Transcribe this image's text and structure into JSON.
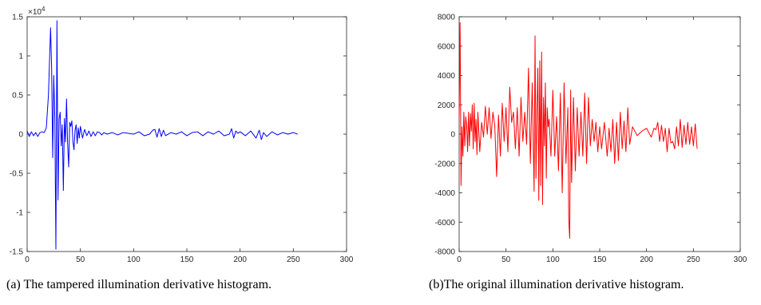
{
  "captions": {
    "a": "(a) The tampered illumination derivative histogram.",
    "b": "(b)The original illumination derivative histogram."
  },
  "chart_data": [
    {
      "type": "line",
      "title": "",
      "xlabel": "",
      "ylabel": "",
      "xlim": [
        0,
        300
      ],
      "ylim": [
        -1.5,
        1.5
      ],
      "y_exponent_label": "×10",
      "y_exponent_power": "4",
      "xticks": [
        "0",
        "50",
        "100",
        "150",
        "200",
        "250",
        "300"
      ],
      "yticks": [
        "-1.5",
        "-1",
        "-0.5",
        "0",
        "0.5",
        "1",
        "1.5"
      ],
      "grid": false,
      "color": "#0000ff",
      "series": [
        {
          "x": [
            0,
            2,
            4,
            6,
            8,
            10,
            12,
            14,
            16,
            18,
            20,
            22,
            23,
            24,
            25,
            26,
            27,
            28,
            29,
            30,
            31,
            32,
            33,
            34,
            35,
            36,
            37,
            38,
            39,
            40,
            41,
            42,
            43,
            44,
            45,
            46,
            47,
            48,
            49,
            50,
            52,
            54,
            56,
            58,
            60,
            62,
            64,
            66,
            68,
            70,
            72,
            75,
            80,
            85,
            90,
            95,
            100,
            105,
            110,
            115,
            118,
            120,
            122,
            124,
            126,
            128,
            130,
            135,
            140,
            145,
            150,
            155,
            160,
            165,
            170,
            175,
            180,
            185,
            190,
            192,
            194,
            196,
            198,
            200,
            205,
            210,
            215,
            218,
            220,
            222,
            225,
            230,
            235,
            240,
            245,
            250,
            254
          ],
          "y": [
            0.04,
            -0.03,
            0.03,
            -0.02,
            0.02,
            -0.03,
            0.02,
            0.03,
            0.02,
            0.08,
            0.5,
            1.36,
            0.85,
            -0.3,
            0.75,
            0.2,
            -1.47,
            1.45,
            -0.84,
            0.2,
            0.28,
            -0.15,
            0.12,
            -0.72,
            0.2,
            -0.1,
            0.45,
            -0.12,
            -0.42,
            0.15,
            0.1,
            0.17,
            -0.1,
            -0.2,
            0.05,
            0.12,
            -0.12,
            0.08,
            -0.05,
            0.1,
            -0.05,
            0.06,
            -0.02,
            0.04,
            -0.03,
            0.03,
            -0.02,
            0.03,
            0.02,
            -0.01,
            0.02,
            0.0,
            0.02,
            -0.01,
            0.02,
            0.01,
            0.0,
            0.03,
            -0.02,
            0.0,
            0.05,
            0.06,
            -0.04,
            0.07,
            -0.03,
            0.05,
            -0.02,
            0.02,
            0.0,
            0.03,
            -0.02,
            0.02,
            0.03,
            -0.02,
            0.03,
            0.0,
            0.04,
            -0.02,
            0.0,
            0.07,
            -0.05,
            0.04,
            0.01,
            0.03,
            -0.02,
            0.04,
            -0.05,
            0.05,
            -0.07,
            0.02,
            -0.03,
            0.03,
            -0.01,
            0.02,
            0.0,
            0.02,
            0.0
          ]
        }
      ]
    },
    {
      "type": "line",
      "title": "",
      "xlabel": "",
      "ylabel": "",
      "xlim": [
        0,
        300
      ],
      "ylim": [
        -8000,
        8000
      ],
      "xticks": [
        "0",
        "50",
        "100",
        "150",
        "200",
        "250",
        "300"
      ],
      "yticks": [
        "-8000",
        "-6000",
        "-4000",
        "-2000",
        "0",
        "2000",
        "4000",
        "6000",
        "8000"
      ],
      "grid": false,
      "color": "#ff0000",
      "series": [
        {
          "x": [
            0,
            1,
            2,
            3,
            4,
            5,
            6,
            7,
            8,
            9,
            10,
            11,
            12,
            13,
            14,
            15,
            16,
            17,
            18,
            19,
            20,
            22,
            24,
            26,
            28,
            30,
            32,
            34,
            36,
            38,
            40,
            42,
            44,
            46,
            48,
            50,
            52,
            54,
            56,
            58,
            60,
            62,
            64,
            66,
            68,
            70,
            72,
            74,
            76,
            78,
            80,
            81,
            82,
            83,
            84,
            85,
            86,
            87,
            88,
            89,
            90,
            91,
            92,
            93,
            94,
            95,
            96,
            98,
            100,
            102,
            104,
            106,
            108,
            110,
            112,
            114,
            116,
            117,
            118,
            119,
            120,
            122,
            124,
            126,
            128,
            130,
            132,
            134,
            136,
            138,
            140,
            142,
            144,
            146,
            148,
            150,
            152,
            155,
            158,
            160,
            162,
            164,
            166,
            168,
            170,
            172,
            174,
            176,
            178,
            180,
            182,
            185,
            190,
            195,
            200,
            205,
            208,
            210,
            212,
            214,
            216,
            218,
            220,
            222,
            224,
            226,
            228,
            230,
            232,
            234,
            236,
            238,
            240,
            242,
            244,
            246,
            248,
            250,
            252,
            254
          ],
          "y": [
            1200,
            7600,
            -3500,
            500,
            -1500,
            1500,
            -800,
            1200,
            600,
            -1200,
            1500,
            -800,
            1400,
            200,
            2000,
            -1000,
            2100,
            -500,
            1000,
            -1400,
            1500,
            -1200,
            800,
            -200,
            1900,
            0,
            1800,
            -300,
            1500,
            600,
            -2900,
            1300,
            -1500,
            2100,
            -500,
            1800,
            -1200,
            3200,
            800,
            1500,
            -1000,
            1800,
            -1500,
            2500,
            -500,
            1500,
            -700,
            4500,
            -2000,
            3500,
            -3900,
            6700,
            -3000,
            1500,
            4500,
            -4500,
            5000,
            -3500,
            5600,
            -4800,
            2500,
            -800,
            3500,
            -3000,
            1800,
            500,
            1000,
            -1500,
            3000,
            -1500,
            1200,
            -2500,
            2800,
            -4000,
            3500,
            -2000,
            1800,
            -5900,
            -7100,
            3000,
            -3300,
            2500,
            -2500,
            1800,
            -1500,
            1500,
            -1500,
            2800,
            -2000,
            2500,
            -800,
            1000,
            -500,
            800,
            -1200,
            500,
            -1000,
            800,
            -1500,
            400,
            -1200,
            1000,
            -2000,
            800,
            -1800,
            1500,
            -1000,
            900,
            -1200,
            1800,
            -700,
            500,
            -100,
            200,
            400,
            -200,
            400,
            300,
            800,
            -500,
            600,
            -500,
            400,
            -1200,
            400,
            -600,
            -500,
            -1000,
            500,
            -800,
            1000,
            -900,
            600,
            -700,
            800,
            -700,
            500,
            -800,
            700,
            -1000
          ]
        }
      ]
    }
  ]
}
